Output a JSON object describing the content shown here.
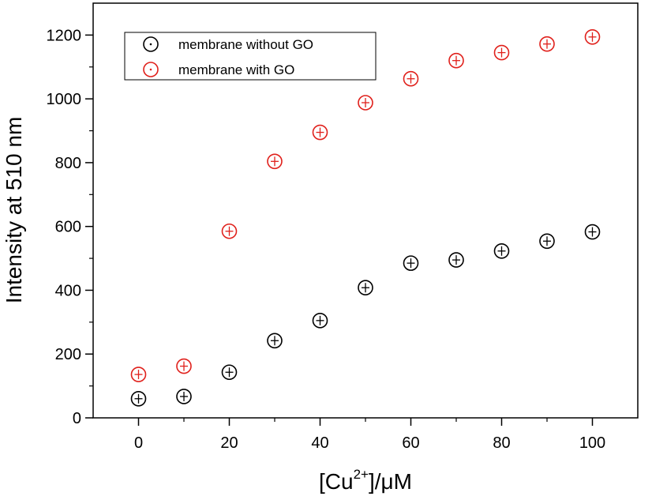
{
  "chart_data": {
    "type": "scatter",
    "title": "",
    "xlabel": {
      "prefix": "[Cu",
      "superscript": "2+",
      "suffix": "]/μM"
    },
    "ylabel": "Intensity at 510 nm",
    "xlim": [
      -10,
      110
    ],
    "ylim": [
      0,
      1300
    ],
    "xticks": [
      0,
      20,
      40,
      60,
      80,
      100
    ],
    "yticks": [
      0,
      200,
      400,
      600,
      800,
      1000,
      1200
    ],
    "grid": false,
    "legend_position": "top-left",
    "series": [
      {
        "name": "membrane without GO",
        "color": "#000000",
        "marker": "circle-open",
        "x": [
          0,
          10,
          20,
          30,
          40,
          50,
          60,
          70,
          80,
          90,
          100
        ],
        "y": [
          60,
          67,
          143,
          242,
          305,
          408,
          485,
          495,
          523,
          554,
          583
        ]
      },
      {
        "name": "membrane with GO",
        "color": "#e0201b",
        "marker": "circle-open",
        "x": [
          0,
          10,
          20,
          30,
          40,
          50,
          60,
          70,
          80,
          90,
          100
        ],
        "y": [
          136,
          162,
          585,
          804,
          895,
          988,
          1063,
          1120,
          1145,
          1172,
          1194
        ]
      }
    ]
  }
}
